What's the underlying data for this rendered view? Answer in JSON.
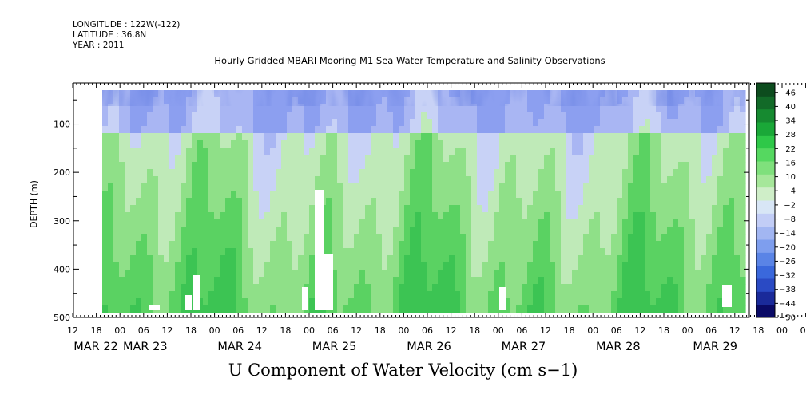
{
  "header": {
    "longitude": "LONGITUDE : 122W(-122)",
    "latitude": "LATITUDE : 36.8N",
    "year": "YEAR : 2011"
  },
  "chart_data": {
    "type": "heatmap",
    "title": "Hourly Gridded MBARI Mooring M1 Sea Water Temperature and Salinity Observations",
    "bottom_title": "U Component of Water Velocity (cm s−1)",
    "ylabel": "DEPTH (m)",
    "ylim": [
      500,
      15
    ],
    "y_ticks": [
      100,
      200,
      300,
      400,
      500
    ],
    "y_tick_labels": [
      "100",
      "200",
      "300",
      "400",
      "500"
    ],
    "x_hour_labels": [
      "12",
      "18",
      "00",
      "06",
      "12",
      "18",
      "00",
      "06",
      "12",
      "18",
      "00",
      "06",
      "12",
      "18",
      "00",
      "06",
      "12",
      "18",
      "00",
      "06",
      "12",
      "18",
      "00",
      "06",
      "12",
      "18",
      "00",
      "06",
      "12",
      "18",
      "00",
      "06",
      "12"
    ],
    "x_date_labels": [
      "MAR 22",
      "MAR 23",
      "MAR 24",
      "MAR 25",
      "MAR 26",
      "MAR 27",
      "MAR 28",
      "MAR 29"
    ],
    "x_date_tick_index": [
      0,
      3,
      7,
      11,
      15,
      19,
      23,
      27
    ],
    "colorbar": {
      "labels": [
        "46",
        "40",
        "34",
        "28",
        "22",
        "16",
        "10",
        "4",
        "-2",
        "-8",
        "-14",
        "-20",
        "-26",
        "-32",
        "-38",
        "-44",
        "-50"
      ],
      "min": -50,
      "max": 50,
      "colors": [
        "#0a0a66",
        "#1a2a9a",
        "#2a4ac4",
        "#3a68dc",
        "#5a84e6",
        "#7e9eee",
        "#a2b6f2",
        "#c2cdf6",
        "#d8e6f6",
        "#cfeec8",
        "#a6e79a",
        "#7fe07c",
        "#55d860",
        "#2ec848",
        "#1aa838",
        "#168a30",
        "#126a28",
        "#0d4c1e"
      ]
    },
    "grid": false
  }
}
